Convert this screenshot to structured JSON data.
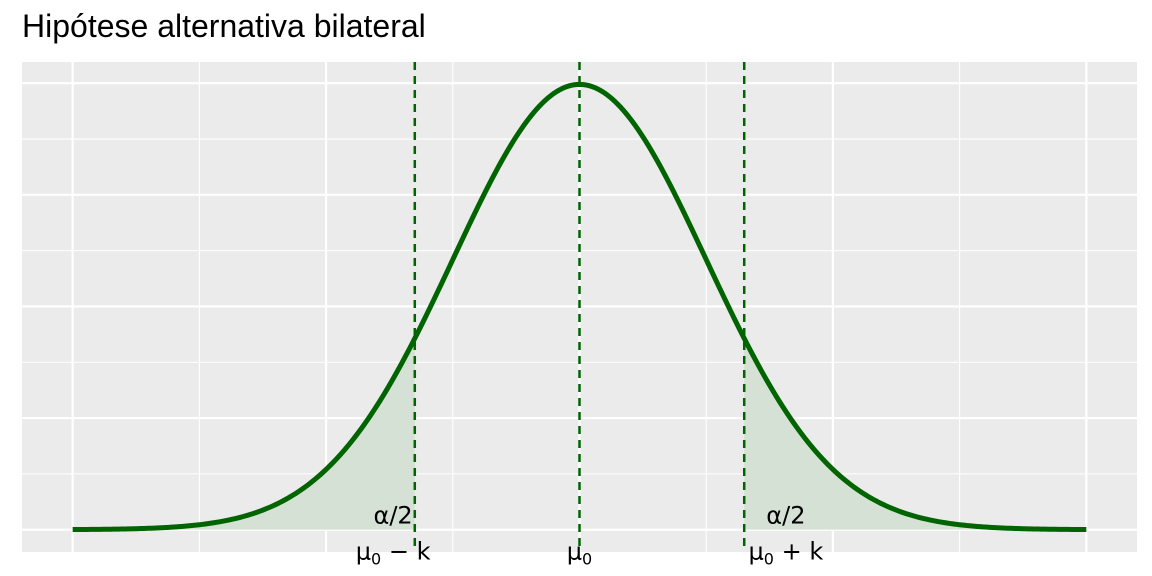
{
  "chart_data": {
    "type": "area",
    "title": "Hipótese alternativa bilateral",
    "xlabel": "",
    "ylabel": "",
    "distribution": {
      "kind": "normal",
      "mean": 0,
      "sd": 1
    },
    "x_range": [
      -4,
      4
    ],
    "xlim": [
      -4.4,
      4.4
    ],
    "ylim": [
      -0.02,
      0.419
    ],
    "critical_values": [
      -1.3,
      1.3
    ],
    "grid": true,
    "legend": "none",
    "annotations": [
      {
        "id": "left-tail",
        "x": -1.55,
        "text": "α/2"
      },
      {
        "id": "right-tail",
        "x": 1.55,
        "text": "α/2"
      }
    ],
    "x_labels": [
      {
        "id": "mu0-minus-k",
        "x": -1.55,
        "base": "μ",
        "sub": "0",
        "rest": " − k"
      },
      {
        "id": "mu0",
        "x": 0,
        "base": "μ",
        "sub": "0",
        "rest": ""
      },
      {
        "id": "mu0-plus-k",
        "x": 1.55,
        "base": "μ",
        "sub": "0",
        "rest": " + k"
      }
    ],
    "colors": {
      "curve": "#006400",
      "fill": "#d6e1d6",
      "panel": "#ebebeb",
      "grid": "#ffffff"
    }
  }
}
